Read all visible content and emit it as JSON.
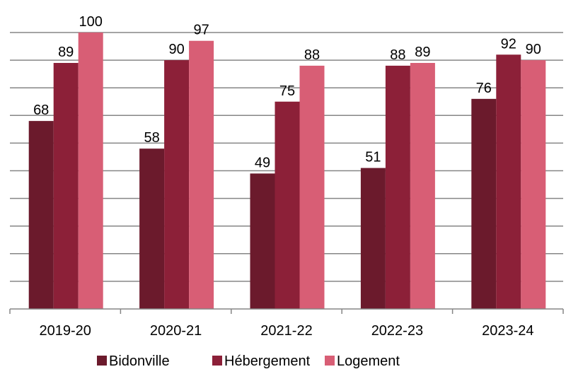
{
  "chart_data": {
    "type": "bar",
    "categories": [
      "2019-20",
      "2020-21",
      "2021-22",
      "2022-23",
      "2023-24"
    ],
    "series": [
      {
        "name": "Bidonville",
        "values": [
          68,
          58,
          49,
          51,
          76
        ],
        "color": "#6b1a2c"
      },
      {
        "name": "Hébergement",
        "values": [
          89,
          90,
          75,
          88,
          92
        ],
        "color": "#8c2038"
      },
      {
        "name": "Logement",
        "values": [
          100,
          97,
          88,
          89,
          90
        ],
        "color": "#d85e75"
      }
    ],
    "ylim": [
      0,
      100
    ],
    "grid": true,
    "legend": "bottom",
    "gridline_color": "#868686"
  }
}
